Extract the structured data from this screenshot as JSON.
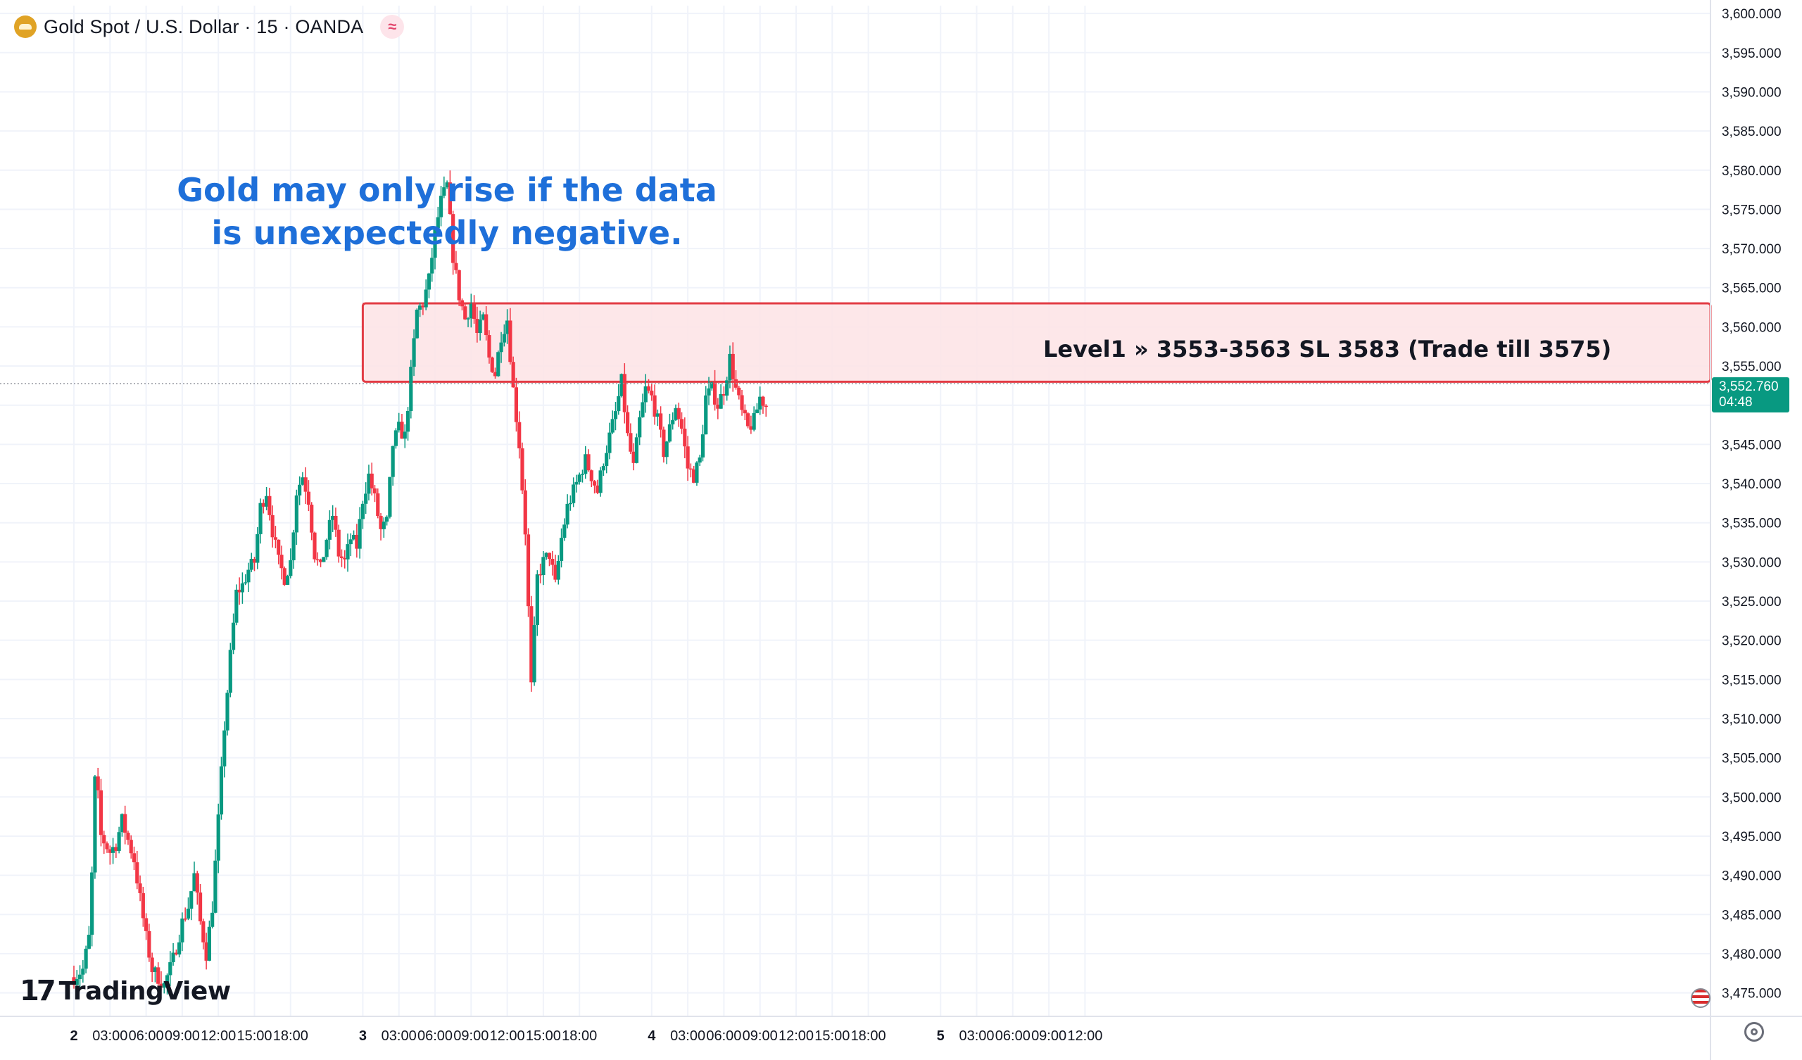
{
  "header": {
    "title": "Gold Spot / U.S. Dollar · 15 · OANDA",
    "symbol_icon": "gold-bars-icon",
    "status_icon": "wave-approx-icon",
    "status_glyph": "≈"
  },
  "annotation": {
    "text": "Gold may only rise if the data is unexpectedly negative.",
    "color": "#1e6fd9"
  },
  "zone": {
    "label": "Level1 » 3553-3563 SL 3583 (Trade till 3575)",
    "low": 3553,
    "high": 3563,
    "fill": "#fde3e5",
    "border": "#e23c45"
  },
  "price_tag": {
    "price": "3,552.760",
    "countdown": "04:48",
    "color": "#089981"
  },
  "logo": {
    "mark": "17",
    "word": "TradingView"
  },
  "colors": {
    "up": "#089981",
    "down": "#f23645",
    "grid": "#f0f3fa",
    "axis_text": "#131722"
  },
  "chart_data": {
    "type": "candlestick",
    "title": "Gold Spot / U.S. Dollar · 15 · OANDA",
    "xlabel": "",
    "ylabel": "",
    "ylim": [
      3472,
      3601
    ],
    "y_ticks": [
      3600,
      3595,
      3590,
      3585,
      3580,
      3575,
      3570,
      3565,
      3560,
      3555,
      3550,
      3545,
      3540,
      3535,
      3530,
      3525,
      3520,
      3515,
      3510,
      3505,
      3500,
      3495,
      3490,
      3485,
      3480,
      3475
    ],
    "y_tick_labels": [
      "3,600.000",
      "3,595.000",
      "3,590.000",
      "3,585.000",
      "3,580.000",
      "3,575.000",
      "3,570.000",
      "3,565.000",
      "3,560.000",
      "3,555.000",
      "3,550.000",
      "3,545.000",
      "3,540.000",
      "3,535.000",
      "3,530.000",
      "3,525.000",
      "3,520.000",
      "3,515.000",
      "3,510.000",
      "3,505.000",
      "3,500.000",
      "3,495.000",
      "3,490.000",
      "3,485.000",
      "3,480.000",
      "3,475.000"
    ],
    "x_ticks": [
      {
        "label": "2",
        "hour": 0,
        "bold": true
      },
      {
        "label": "03:00",
        "hour": 3
      },
      {
        "label": "06:00",
        "hour": 6
      },
      {
        "label": "09:00",
        "hour": 9
      },
      {
        "label": "12:00",
        "hour": 12
      },
      {
        "label": "15:00",
        "hour": 15
      },
      {
        "label": "18:00",
        "hour": 18
      },
      {
        "label": "3",
        "hour": 24,
        "bold": true
      },
      {
        "label": "03:00",
        "hour": 27
      },
      {
        "label": "06:00",
        "hour": 30
      },
      {
        "label": "09:00",
        "hour": 33
      },
      {
        "label": "12:00",
        "hour": 36
      },
      {
        "label": "15:00",
        "hour": 39
      },
      {
        "label": "18:00",
        "hour": 42
      },
      {
        "label": "4",
        "hour": 48,
        "bold": true
      },
      {
        "label": "03:00",
        "hour": 51
      },
      {
        "label": "06:00",
        "hour": 54
      },
      {
        "label": "09:00",
        "hour": 57
      },
      {
        "label": "12:00",
        "hour": 60
      },
      {
        "label": "15:00",
        "hour": 63
      },
      {
        "label": "18:00",
        "hour": 66
      },
      {
        "label": "5",
        "hour": 72,
        "bold": true
      },
      {
        "label": "03:00",
        "hour": 75
      },
      {
        "label": "06:00",
        "hour": 78
      },
      {
        "label": "09:00",
        "hour": 81
      },
      {
        "label": "12:00",
        "hour": 84
      }
    ],
    "last_price": 3552.76,
    "candle_interval_hours": 0.25,
    "path": [
      {
        "h": 0.0,
        "p": 3477
      },
      {
        "h": 0.75,
        "p": 3478
      },
      {
        "h": 1.25,
        "p": 3482
      },
      {
        "h": 1.5,
        "p": 3490
      },
      {
        "h": 1.75,
        "p": 3502
      },
      {
        "h": 2.0,
        "p": 3500
      },
      {
        "h": 2.25,
        "p": 3495
      },
      {
        "h": 3.0,
        "p": 3493
      },
      {
        "h": 3.5,
        "p": 3494
      },
      {
        "h": 4.0,
        "p": 3497
      },
      {
        "h": 4.6,
        "p": 3494
      },
      {
        "h": 5.0,
        "p": 3492
      },
      {
        "h": 5.5,
        "p": 3487
      },
      {
        "h": 6.0,
        "p": 3482
      },
      {
        "h": 6.5,
        "p": 3478
      },
      {
        "h": 7.5,
        "p": 3476
      },
      {
        "h": 8.2,
        "p": 3479
      },
      {
        "h": 9.0,
        "p": 3484
      },
      {
        "h": 9.5,
        "p": 3486
      },
      {
        "h": 10.0,
        "p": 3490
      },
      {
        "h": 10.5,
        "p": 3484
      },
      {
        "h": 11.0,
        "p": 3480
      },
      {
        "h": 11.5,
        "p": 3486
      },
      {
        "h": 12.0,
        "p": 3497
      },
      {
        "h": 12.5,
        "p": 3509
      },
      {
        "h": 13.0,
        "p": 3518
      },
      {
        "h": 13.5,
        "p": 3526
      },
      {
        "h": 14.0,
        "p": 3527
      },
      {
        "h": 14.5,
        "p": 3529
      },
      {
        "h": 15.0,
        "p": 3530
      },
      {
        "h": 15.5,
        "p": 3537
      },
      {
        "h": 16.0,
        "p": 3539
      },
      {
        "h": 16.5,
        "p": 3534
      },
      {
        "h": 17.0,
        "p": 3530
      },
      {
        "h": 17.5,
        "p": 3528
      },
      {
        "h": 18.0,
        "p": 3530
      },
      {
        "h": 18.5,
        "p": 3539
      },
      {
        "h": 19.0,
        "p": 3541
      },
      {
        "h": 19.5,
        "p": 3538
      },
      {
        "h": 20.0,
        "p": 3531
      },
      {
        "h": 20.5,
        "p": 3529
      },
      {
        "h": 21.0,
        "p": 3533
      },
      {
        "h": 21.5,
        "p": 3536
      },
      {
        "h": 22.0,
        "p": 3531
      },
      {
        "h": 22.5,
        "p": 3530
      },
      {
        "h": 23.0,
        "p": 3533
      },
      {
        "h": 23.5,
        "p": 3532
      },
      {
        "h": 24.0,
        "p": 3538
      },
      {
        "h": 24.5,
        "p": 3541
      },
      {
        "h": 25.0,
        "p": 3538
      },
      {
        "h": 25.5,
        "p": 3534
      },
      {
        "h": 26.0,
        "p": 3535
      },
      {
        "h": 26.5,
        "p": 3545
      },
      {
        "h": 27.0,
        "p": 3547
      },
      {
        "h": 27.5,
        "p": 3546
      },
      {
        "h": 28.0,
        "p": 3554
      },
      {
        "h": 28.5,
        "p": 3562
      },
      {
        "h": 29.0,
        "p": 3563
      },
      {
        "h": 29.5,
        "p": 3566
      },
      {
        "h": 30.0,
        "p": 3572
      },
      {
        "h": 30.5,
        "p": 3576
      },
      {
        "h": 31.0,
        "p": 3578
      },
      {
        "h": 31.5,
        "p": 3569
      },
      {
        "h": 32.0,
        "p": 3564
      },
      {
        "h": 32.5,
        "p": 3561
      },
      {
        "h": 33.0,
        "p": 3563
      },
      {
        "h": 33.5,
        "p": 3559
      },
      {
        "h": 34.0,
        "p": 3561
      },
      {
        "h": 34.5,
        "p": 3556
      },
      {
        "h": 35.0,
        "p": 3554
      },
      {
        "h": 35.5,
        "p": 3559
      },
      {
        "h": 36.0,
        "p": 3561
      },
      {
        "h": 36.5,
        "p": 3552
      },
      {
        "h": 37.0,
        "p": 3545
      },
      {
        "h": 37.5,
        "p": 3534
      },
      {
        "h": 37.75,
        "p": 3524
      },
      {
        "h": 38.0,
        "p": 3514
      },
      {
        "h": 38.5,
        "p": 3528
      },
      {
        "h": 39.0,
        "p": 3530
      },
      {
        "h": 39.5,
        "p": 3531
      },
      {
        "h": 40.0,
        "p": 3527
      },
      {
        "h": 40.5,
        "p": 3533
      },
      {
        "h": 41.0,
        "p": 3537
      },
      {
        "h": 41.5,
        "p": 3539
      },
      {
        "h": 42.0,
        "p": 3541
      },
      {
        "h": 42.5,
        "p": 3543
      },
      {
        "h": 43.0,
        "p": 3541
      },
      {
        "h": 43.5,
        "p": 3539
      },
      {
        "h": 44.0,
        "p": 3543
      },
      {
        "h": 44.5,
        "p": 3546
      },
      {
        "h": 45.0,
        "p": 3549
      },
      {
        "h": 45.5,
        "p": 3553
      },
      {
        "h": 46.0,
        "p": 3546
      },
      {
        "h": 46.5,
        "p": 3542
      },
      {
        "h": 47.0,
        "p": 3548
      },
      {
        "h": 47.5,
        "p": 3552
      },
      {
        "h": 48.0,
        "p": 3551
      },
      {
        "h": 48.5,
        "p": 3548
      },
      {
        "h": 49.0,
        "p": 3544
      },
      {
        "h": 49.5,
        "p": 3547
      },
      {
        "h": 50.0,
        "p": 3550
      },
      {
        "h": 50.5,
        "p": 3547
      },
      {
        "h": 51.0,
        "p": 3542
      },
      {
        "h": 51.5,
        "p": 3541
      },
      {
        "h": 52.0,
        "p": 3543
      },
      {
        "h": 52.5,
        "p": 3551
      },
      {
        "h": 53.0,
        "p": 3552
      },
      {
        "h": 53.5,
        "p": 3550
      },
      {
        "h": 54.0,
        "p": 3552
      },
      {
        "h": 54.5,
        "p": 3556
      },
      {
        "h": 55.0,
        "p": 3552
      },
      {
        "h": 55.5,
        "p": 3549
      },
      {
        "h": 56.0,
        "p": 3547
      },
      {
        "h": 56.5,
        "p": 3548
      },
      {
        "h": 57.0,
        "p": 3551
      },
      {
        "h": 57.5,
        "p": 3550
      }
    ]
  }
}
